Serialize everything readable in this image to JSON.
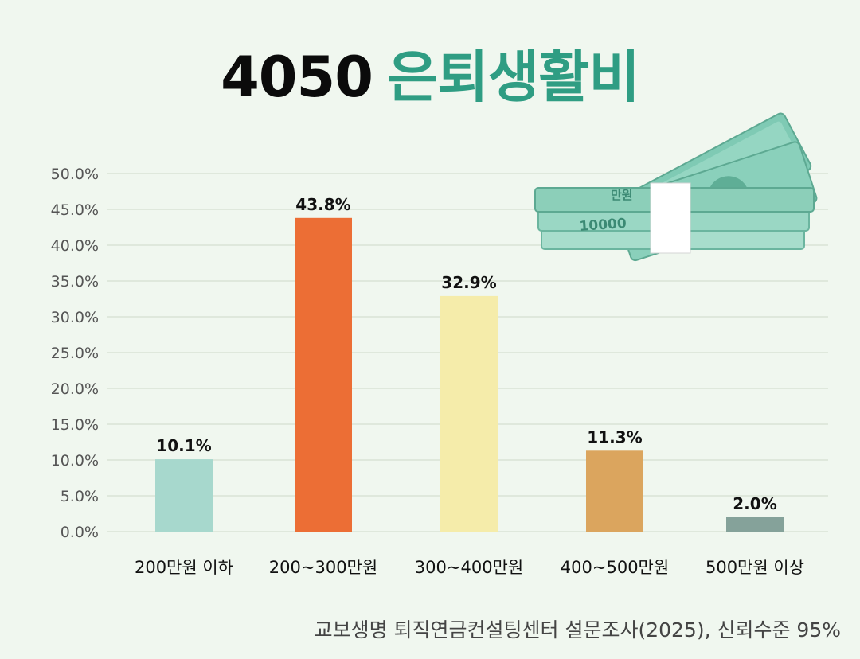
{
  "title": {
    "number": "4050",
    "text": "은퇴생활비"
  },
  "source": "교보생명 퇴직연금컨설팅센터 설문조사(2025), 신뢰수준 95%",
  "decoration": {
    "icon": "money-stack-icon",
    "band_label": "만원",
    "note_value": "10000"
  },
  "colors": {
    "title_accent": "#2f9d83",
    "gridline": "#d9e3d6",
    "axis_text": "#444444"
  },
  "chart_data": {
    "type": "bar",
    "categories": [
      "200만원 이하",
      "200~300만원",
      "300~400만원",
      "400~500만원",
      "500만원 이상"
    ],
    "values": [
      10.1,
      43.8,
      32.9,
      11.3,
      2.0
    ],
    "value_labels": [
      "10.1%",
      "43.8%",
      "32.9%",
      "11.3%",
      "2.0%"
    ],
    "bar_colors": [
      "#a7d8cd",
      "#ec6e35",
      "#f5ecaa",
      "#dba55e",
      "#85a29a"
    ],
    "ylim": [
      0,
      50
    ],
    "yticks": [
      "0.0%",
      "5.0%",
      "10.0%",
      "15.0%",
      "20.0%",
      "25.0%",
      "30.0%",
      "35.0%",
      "40.0%",
      "45.0%",
      "50.0%"
    ],
    "ytick_values": [
      0,
      5,
      10,
      15,
      20,
      25,
      30,
      35,
      40,
      45,
      50
    ],
    "grid": true,
    "legend": "none",
    "title": "",
    "xlabel": "",
    "ylabel": ""
  }
}
